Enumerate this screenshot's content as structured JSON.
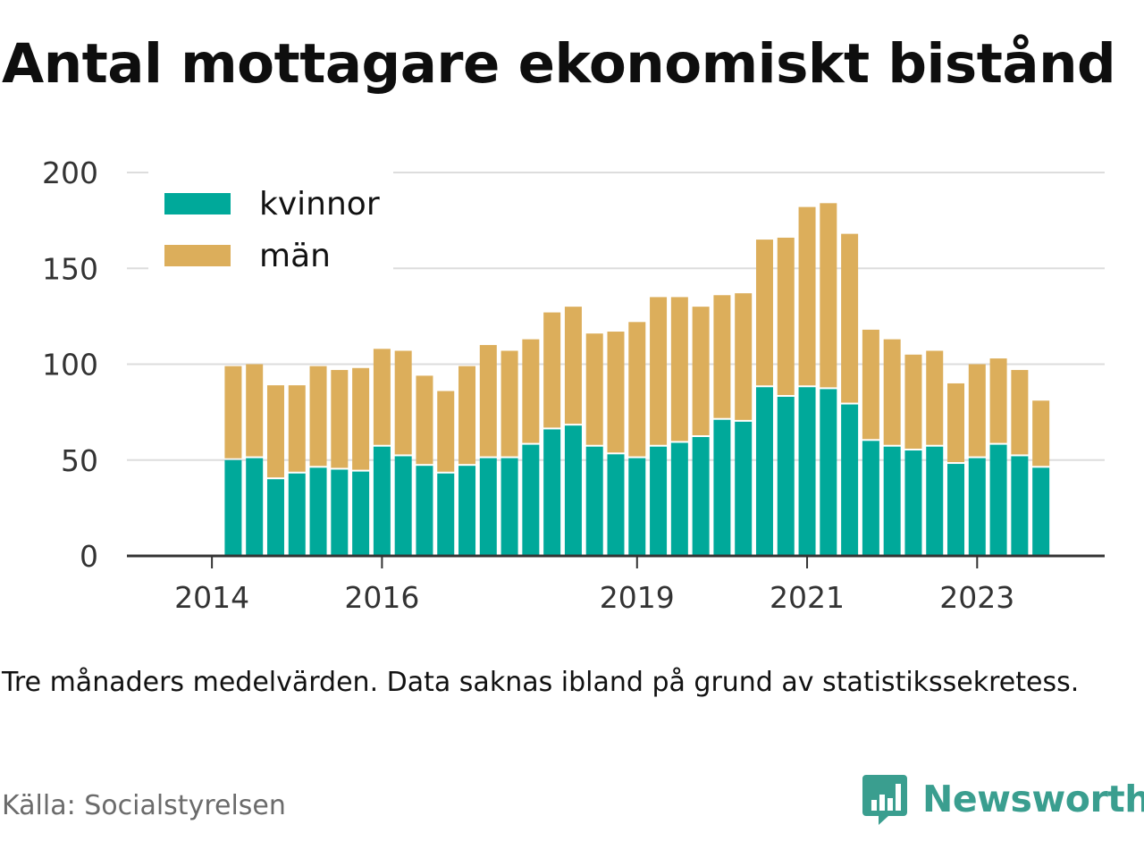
{
  "title": "Antal mottagare ekonomiskt bistånd",
  "note": "Tre månaders medelvärden. Data saknas ibland på grund av statistikssekretess.",
  "source": "Källa: Socialstyrelsen",
  "brand": {
    "name": "Newsworthy",
    "color": "#3a9e8f",
    "icon": "bar-chart-speech-bubble-icon"
  },
  "colors": {
    "kvinnor": "#00a99a",
    "man": "#dcae5b",
    "grid": "#dddddd",
    "axis": "#333333"
  },
  "chart_data": {
    "type": "bar",
    "stacked": true,
    "x_tick_labels": [
      "2014",
      "2016",
      "2019",
      "2021",
      "2023"
    ],
    "x_tick_positions": [
      2014.0,
      2016.0,
      2019.0,
      2021.0,
      2023.0
    ],
    "x": [
      2014.25,
      2014.5,
      2014.75,
      2015.0,
      2015.25,
      2015.5,
      2015.75,
      2016.0,
      2016.25,
      2016.5,
      2016.75,
      2017.0,
      2017.25,
      2017.5,
      2017.75,
      2018.0,
      2018.25,
      2018.5,
      2018.75,
      2019.0,
      2019.25,
      2019.5,
      2019.75,
      2020.0,
      2020.25,
      2020.5,
      2020.75,
      2021.0,
      2021.25,
      2021.5,
      2021.75,
      2022.0,
      2022.25,
      2022.5,
      2022.75,
      2023.0,
      2023.25,
      2023.5,
      2023.75
    ],
    "series": [
      {
        "name": "kvinnor",
        "values": [
          50,
          51,
          40,
          43,
          46,
          45,
          44,
          57,
          52,
          47,
          43,
          47,
          51,
          51,
          58,
          66,
          68,
          57,
          53,
          51,
          57,
          59,
          62,
          71,
          70,
          88,
          83,
          88,
          87,
          79,
          60,
          57,
          55,
          57,
          48,
          51,
          58,
          52,
          46
        ]
      },
      {
        "name": "män",
        "values": [
          49,
          49,
          49,
          46,
          53,
          52,
          54,
          51,
          55,
          47,
          43,
          52,
          59,
          56,
          55,
          61,
          62,
          59,
          64,
          71,
          78,
          76,
          68,
          65,
          67,
          77,
          83,
          94,
          97,
          89,
          58,
          56,
          50,
          50,
          42,
          49,
          45,
          45,
          35
        ]
      }
    ],
    "title": "Antal mottagare ekonomiskt bistånd",
    "xlabel": "",
    "ylabel": "",
    "ylim": [
      0,
      200
    ],
    "y_ticks": [
      0,
      50,
      100,
      150,
      200
    ],
    "grid": true,
    "legend_position": "top-left"
  }
}
